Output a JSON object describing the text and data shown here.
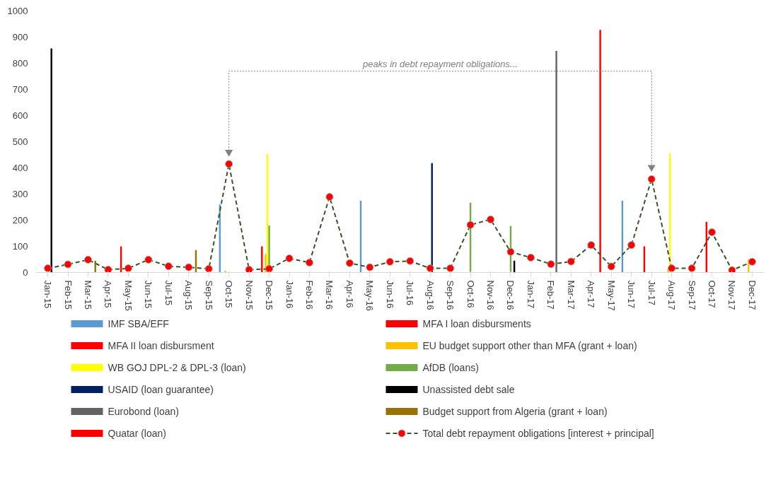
{
  "chart_data": {
    "type": "bar",
    "categories": [
      "Jan-15",
      "Feb-15",
      "Mar-15",
      "Apr-15",
      "May-15",
      "Jun-15",
      "Jul-15",
      "Aug-15",
      "Sep-15",
      "Oct-15",
      "Nov-15",
      "Dec-15",
      "Jan-16",
      "Feb-16",
      "Mar-16",
      "Apr-16",
      "May-16",
      "Jun-16",
      "Jul-16",
      "Aug-16",
      "Sep-16",
      "Oct-16",
      "Nov-16",
      "Dec-16",
      "Jan-17",
      "Feb-17",
      "Mar-17",
      "Apr-17",
      "May-17",
      "Jun-17",
      "Jul-17",
      "Aug-17",
      "Sep-17",
      "Oct-17",
      "Nov-17",
      "Dec-17"
    ],
    "ylim": [
      0,
      1000
    ],
    "yticks": [
      0,
      100,
      200,
      300,
      400,
      500,
      600,
      700,
      800,
      900,
      1000
    ],
    "grid": false,
    "legend": "bottom",
    "marker": "circle",
    "line_style": "dashed",
    "annotations": [
      "peaks in debt repayment obligations..."
    ],
    "series": [
      {
        "name": "IMF SBA/EFF",
        "color": "#5b9bd5",
        "values": [
          null,
          null,
          null,
          null,
          null,
          null,
          null,
          null,
          null,
          260,
          null,
          null,
          null,
          null,
          null,
          null,
          274,
          null,
          null,
          null,
          null,
          null,
          null,
          null,
          null,
          null,
          null,
          null,
          null,
          275,
          null,
          null,
          null,
          null,
          null,
          null
        ]
      },
      {
        "name": "MFA I loan disbursments",
        "color": "#ff0000",
        "values": [
          null,
          null,
          null,
          null,
          100,
          null,
          null,
          null,
          null,
          null,
          null,
          100,
          null,
          null,
          null,
          null,
          null,
          null,
          null,
          null,
          null,
          null,
          null,
          null,
          null,
          null,
          null,
          null,
          null,
          null,
          100,
          null,
          null,
          null,
          null,
          null
        ]
      },
      {
        "name": "MFA II loan disbursment",
        "color": "#ff0000",
        "values": [
          null,
          null,
          null,
          null,
          null,
          null,
          null,
          null,
          null,
          null,
          null,
          null,
          null,
          null,
          null,
          null,
          null,
          null,
          null,
          null,
          null,
          null,
          null,
          null,
          null,
          null,
          null,
          null,
          null,
          null,
          null,
          null,
          null,
          194,
          null,
          null
        ]
      },
      {
        "name": "EU budget support other than MFA (grant + loan)",
        "color": "#ffc000",
        "values": [
          null,
          null,
          null,
          null,
          null,
          null,
          null,
          null,
          null,
          7,
          null,
          70,
          null,
          null,
          null,
          null,
          null,
          null,
          null,
          null,
          null,
          null,
          null,
          null,
          null,
          null,
          null,
          null,
          null,
          null,
          null,
          12,
          null,
          null,
          null,
          51
        ]
      },
      {
        "name": "WB GOJ DPL-2 & DPL-3 (loan)",
        "color": "#ffff00",
        "values": [
          null,
          null,
          null,
          null,
          null,
          null,
          null,
          null,
          null,
          null,
          null,
          453,
          null,
          null,
          null,
          null,
          null,
          null,
          null,
          null,
          null,
          null,
          null,
          null,
          null,
          null,
          null,
          null,
          null,
          null,
          null,
          456,
          null,
          null,
          null,
          null
        ]
      },
      {
        "name": "AfDB (loans)",
        "color": "#70ad47",
        "values": [
          null,
          null,
          null,
          null,
          null,
          null,
          null,
          null,
          null,
          null,
          null,
          180,
          null,
          null,
          null,
          null,
          null,
          null,
          null,
          null,
          null,
          267,
          null,
          178,
          null,
          null,
          null,
          null,
          null,
          null,
          null,
          null,
          null,
          null,
          null,
          null
        ]
      },
      {
        "name": "USAID (loan guarantee)",
        "color": "#002060",
        "values": [
          null,
          null,
          null,
          null,
          null,
          null,
          null,
          null,
          null,
          null,
          null,
          null,
          null,
          null,
          null,
          null,
          null,
          null,
          null,
          418,
          null,
          null,
          null,
          null,
          null,
          null,
          null,
          null,
          null,
          null,
          null,
          null,
          null,
          null,
          null,
          null
        ]
      },
      {
        "name": "Unassisted debt sale",
        "color": "#000000",
        "values": [
          857,
          null,
          null,
          null,
          null,
          null,
          null,
          null,
          null,
          null,
          null,
          null,
          null,
          null,
          null,
          null,
          null,
          null,
          null,
          null,
          null,
          null,
          null,
          45,
          null,
          null,
          null,
          null,
          null,
          null,
          null,
          null,
          null,
          null,
          null,
          null
        ]
      },
      {
        "name": "Eurobond (loan)",
        "color": "#636363",
        "values": [
          null,
          null,
          null,
          null,
          null,
          null,
          null,
          null,
          null,
          null,
          null,
          null,
          null,
          null,
          null,
          null,
          null,
          null,
          null,
          null,
          null,
          null,
          null,
          null,
          null,
          847,
          null,
          null,
          null,
          null,
          null,
          null,
          null,
          null,
          null,
          null
        ]
      },
      {
        "name": "Budget support from Algeria (grant + loan)",
        "color": "#997300",
        "values": [
          null,
          null,
          45,
          null,
          null,
          null,
          null,
          86,
          null,
          null,
          null,
          null,
          null,
          null,
          null,
          null,
          null,
          null,
          null,
          null,
          null,
          null,
          null,
          null,
          null,
          null,
          null,
          null,
          null,
          null,
          null,
          null,
          null,
          null,
          null,
          null
        ]
      },
      {
        "name": "Quatar (loan)",
        "color": "#ff0000",
        "values": [
          null,
          null,
          null,
          null,
          null,
          null,
          null,
          null,
          null,
          null,
          null,
          null,
          null,
          null,
          null,
          null,
          null,
          null,
          null,
          null,
          null,
          null,
          null,
          null,
          null,
          null,
          null,
          928,
          null,
          null,
          null,
          null,
          null,
          null,
          null,
          null
        ]
      },
      {
        "name": "Total debt repayment obligations [interest + principal]",
        "type": "line",
        "color": "#375623",
        "values": [
          16,
          31,
          49,
          11,
          16,
          49,
          24,
          20,
          14,
          415,
          11,
          14,
          54,
          38,
          289,
          36,
          20,
          41,
          44,
          16,
          16,
          182,
          203,
          79,
          57,
          32,
          42,
          105,
          23,
          105,
          357,
          16,
          16,
          154,
          9,
          41
        ]
      }
    ]
  }
}
